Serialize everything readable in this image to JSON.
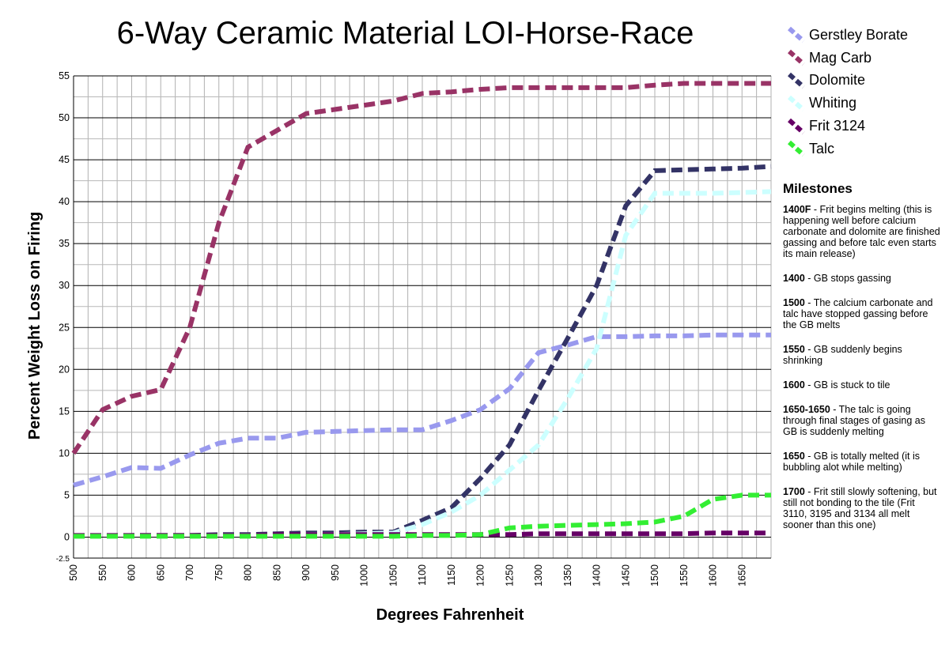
{
  "chart_data": {
    "type": "line",
    "title": "6-Way Ceramic Material LOI-Horse-Race",
    "xlabel": "Degrees Fahrenheit",
    "ylabel": "Percent Weight Loss on Firing",
    "x": [
      500,
      550,
      600,
      650,
      700,
      750,
      800,
      850,
      900,
      950,
      1000,
      1050,
      1100,
      1150,
      1200,
      1250,
      1300,
      1350,
      1400,
      1450,
      1500,
      1550,
      1600,
      1650,
      1700
    ],
    "xticks": [
      "500",
      "550",
      "600",
      "650",
      "700",
      "750",
      "800",
      "850",
      "900",
      "950",
      "1000",
      "1050",
      "1100",
      "1150",
      "1200",
      "1250",
      "1300",
      "1350",
      "1400",
      "1450",
      "1500",
      "1550",
      "1600",
      "1650"
    ],
    "yticks": [
      "-2.5",
      "0",
      "5",
      "10",
      "15",
      "20",
      "25",
      "30",
      "35",
      "40",
      "45",
      "50",
      "55"
    ],
    "xlim": [
      500,
      1700
    ],
    "ylim": [
      -2.5,
      55
    ],
    "grid": true,
    "legend_position": "right",
    "series": [
      {
        "name": "Gerstley Borate",
        "color": "#9999ee",
        "values": [
          6.2,
          7.2,
          8.3,
          8.2,
          9.8,
          11.2,
          11.8,
          11.8,
          12.5,
          12.6,
          12.7,
          12.8,
          12.8,
          13.9,
          15.2,
          17.7,
          22,
          22.9,
          23.9,
          23.9,
          24,
          24,
          24.1,
          24.1,
          24.1
        ]
      },
      {
        "name": "Mag Carb",
        "color": "#993366",
        "values": [
          10,
          15.2,
          16.8,
          17.6,
          25,
          37.5,
          46.5,
          48.5,
          50.5,
          51,
          51.5,
          52,
          52.9,
          53.1,
          53.4,
          53.6,
          53.6,
          53.6,
          53.6,
          53.6,
          53.9,
          54.1,
          54.1,
          54.1,
          54.1
        ]
      },
      {
        "name": "Dolomite",
        "color": "#333366",
        "values": [
          0.1,
          0.1,
          0.2,
          0.2,
          0.2,
          0.3,
          0.3,
          0.4,
          0.5,
          0.5,
          0.6,
          0.6,
          2,
          3.5,
          7,
          11,
          17.5,
          23.7,
          30,
          39.5,
          43.7,
          43.8,
          43.9,
          44,
          44.2
        ]
      },
      {
        "name": "Whiting",
        "color": "#ccffff",
        "values": [
          0.1,
          0.1,
          0.1,
          0.1,
          0.1,
          0.2,
          0.2,
          0.2,
          0.3,
          0.3,
          0.4,
          0.5,
          1.5,
          3,
          5,
          8,
          11,
          16.5,
          22.5,
          36,
          41,
          41,
          41,
          41.1,
          41.2
        ]
      },
      {
        "name": "Frit 3124",
        "color": "#660066",
        "values": [
          0.2,
          0.2,
          0.2,
          0.2,
          0.2,
          0.2,
          0.2,
          0.3,
          0.3,
          0.3,
          0.3,
          0.3,
          0.3,
          0.3,
          0.3,
          0.3,
          0.4,
          0.4,
          0.4,
          0.4,
          0.4,
          0.4,
          0.5,
          0.5,
          0.5
        ]
      },
      {
        "name": "Talc",
        "color": "#33ee33",
        "values": [
          0.1,
          0.1,
          0.1,
          0.1,
          0.1,
          0.1,
          0.1,
          0.1,
          0.1,
          0.1,
          0.1,
          0.1,
          0.2,
          0.2,
          0.3,
          1.1,
          1.3,
          1.4,
          1.5,
          1.6,
          1.8,
          2.5,
          4.5,
          5,
          5
        ]
      }
    ]
  },
  "milestones": {
    "title": "Milestones",
    "items": [
      {
        "label": "1400F",
        "text": " - Frit begins melting (this is happening well before calcium carbonate and dolomite are finished gassing and before talc even starts its main release)"
      },
      {
        "label": "1400",
        "text": " - GB stops gassing"
      },
      {
        "label": "1500",
        "text": " - The calcium carbonate and talc have stopped gassing before the GB melts"
      },
      {
        "label": "1550",
        "text": " - GB suddenly begins shrinking"
      },
      {
        "label": "1600",
        "text": " - GB is stuck to tile"
      },
      {
        "label": "1650-1650",
        "text": " - The talc is going through final stages of gasing as GB is suddenly melting"
      },
      {
        "label": "1650",
        "text": " - GB is totally melted (it is bubbling alot while melting)"
      },
      {
        "label": "1700",
        "text": " - Frit still slowly softening, but still not bonding to the tile (Frit 3110, 3195 and 3134 all melt sooner than this one)"
      }
    ]
  }
}
